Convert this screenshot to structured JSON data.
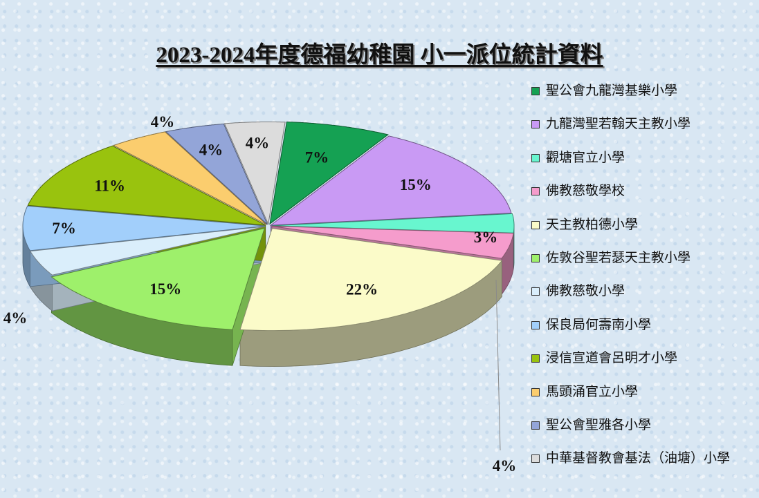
{
  "title": "2023-2024年度德福幼稚園  小一派位統計資料",
  "chart_data": {
    "type": "pie",
    "title": "2023-2024年度德福幼稚園  小一派位統計資料",
    "legend_position": "right",
    "slices": [
      {
        "name": "聖公會九龍灣基樂小學",
        "value": 7,
        "label": "7%",
        "color": "#15a153"
      },
      {
        "name": "九龍灣聖若翰天主教小學",
        "value": 15,
        "label": "15%",
        "color": "#c99af4"
      },
      {
        "name": "觀塘官立小學",
        "value": 3,
        "label": "3%",
        "color": "#68f6cf"
      },
      {
        "name": "佛教慈敬學校",
        "value": 4,
        "label": "4%",
        "color": "#f59ccc"
      },
      {
        "name": "天主教柏德小學",
        "value": 22,
        "label": "22%",
        "color": "#fbfbc9"
      },
      {
        "name": "佐敦谷聖若瑟天主教小學",
        "value": 15,
        "label": "15%",
        "color": "#9ef06b"
      },
      {
        "name": "佛教慈敬小學",
        "value": 4,
        "label": "4%",
        "color": "#daeefb"
      },
      {
        "name": "保良局何壽南小學",
        "value": 7,
        "label": "7%",
        "color": "#a2cffb"
      },
      {
        "name": "浸信宣道會呂明才小學",
        "value": 11,
        "label": "11%",
        "color": "#99c30e"
      },
      {
        "name": "馬頭涌官立小學",
        "value": 4,
        "label": "4%",
        "color": "#fbcd6e"
      },
      {
        "name": "聖公會聖雅各小學",
        "value": 4,
        "label": "4%",
        "color": "#93a5d8"
      },
      {
        "name": "中華基督教會基法（油塘）小學",
        "value": 4,
        "label": "4%",
        "color": "#dcdcdc"
      }
    ]
  }
}
